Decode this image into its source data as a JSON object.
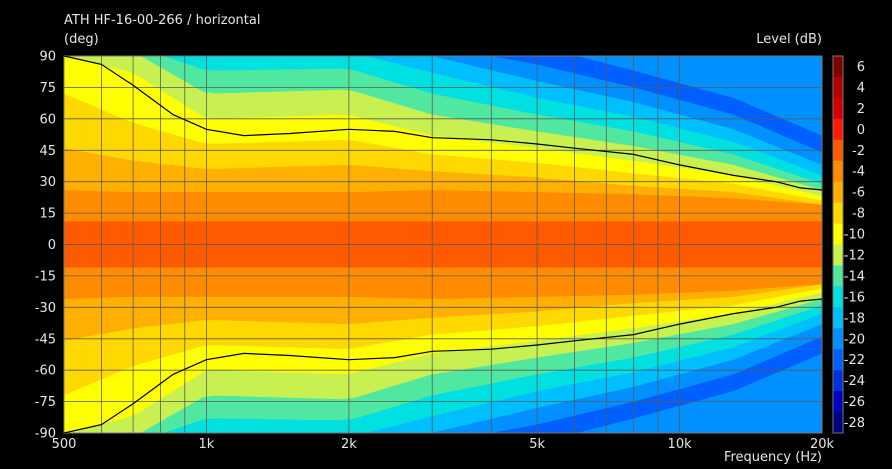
{
  "chart_data": {
    "type": "heatmap",
    "title": "ATH HF-16-00-266 / horizontal",
    "ylabel": "(deg)",
    "xlabel": "Frequency  (Hz)",
    "colorbar_label": "Level  (dB)",
    "x_scale": "log",
    "xlim": [
      500,
      20000
    ],
    "ylim": [
      -90,
      90
    ],
    "x_ticks": [
      500,
      1000,
      2000,
      5000,
      10000,
      20000
    ],
    "x_tick_labels": [
      "500",
      "1k",
      "2k",
      "5k",
      "10k",
      "20k"
    ],
    "y_ticks": [
      90,
      75,
      60,
      45,
      30,
      15,
      0,
      -15,
      -30,
      -45,
      -60,
      -75,
      -90
    ],
    "y_tick_labels": [
      "90",
      "75",
      "60",
      "45",
      "30",
      "15",
      "0",
      "-15",
      "-30",
      "-45",
      "-60",
      "-75",
      "-90"
    ],
    "grid": true,
    "colorbar_ticks": [
      "6",
      "4",
      "2",
      "0",
      "-2",
      "-4",
      "-6",
      "-8",
      "-10",
      "-12",
      "-14",
      "-16",
      "-18",
      "-20",
      "-22",
      "-24",
      "-26",
      "-28"
    ],
    "colors": [
      "#800000",
      "#b00000",
      "#d00000",
      "#ff1a00",
      "#ff5a00",
      "#ff8c00",
      "#ffb000",
      "#ffd800",
      "#ffff00",
      "#c8f050",
      "#50e8a0",
      "#00e0e0",
      "#00bfff",
      "#0090ff",
      "#0060ff",
      "#0030e0",
      "#0000c0",
      "#000080"
    ],
    "contour_levels": [
      -2,
      -4,
      -6,
      -8,
      -10,
      -12,
      -14,
      -16,
      -18,
      -20,
      -22
    ],
    "contour_angles": [
      [
        11,
        11,
        11,
        11,
        11,
        11,
        11,
        11,
        11
      ],
      [
        26,
        25,
        25,
        25,
        26,
        25,
        24,
        22,
        19
      ],
      [
        46,
        40,
        36,
        38,
        35,
        32,
        28,
        25,
        19
      ],
      [
        72,
        58,
        48,
        50,
        43,
        39,
        34,
        29,
        21
      ],
      [
        90,
        82,
        60,
        62,
        52,
        46,
        40,
        33,
        23
      ],
      [
        95,
        92,
        72,
        74,
        62,
        54,
        47,
        38,
        26
      ],
      [
        95,
        95,
        83,
        84,
        72,
        62,
        54,
        43,
        29
      ],
      [
        95,
        95,
        90,
        92,
        82,
        70,
        61,
        49,
        33
      ],
      [
        95,
        95,
        95,
        95,
        90,
        78,
        68,
        55,
        38
      ],
      [
        95,
        95,
        95,
        95,
        95,
        86,
        75,
        62,
        44
      ],
      [
        95,
        95,
        95,
        95,
        95,
        95,
        83,
        70,
        52
      ]
    ],
    "contour_freqs": [
      500,
      700,
      1000,
      2000,
      3000,
      5000,
      8000,
      13000,
      20000
    ],
    "isobar_line": {
      "x": [
        500,
        600,
        700,
        850,
        1000,
        1200,
        1500,
        2000,
        2500,
        3000,
        4000,
        5000,
        6000,
        8000,
        10000,
        13000,
        16000,
        18000,
        20000
      ],
      "y": [
        90,
        86,
        76,
        62,
        55,
        52,
        53,
        55,
        54,
        51,
        50,
        48,
        46,
        43,
        38,
        33,
        30,
        27,
        26
      ]
    }
  }
}
